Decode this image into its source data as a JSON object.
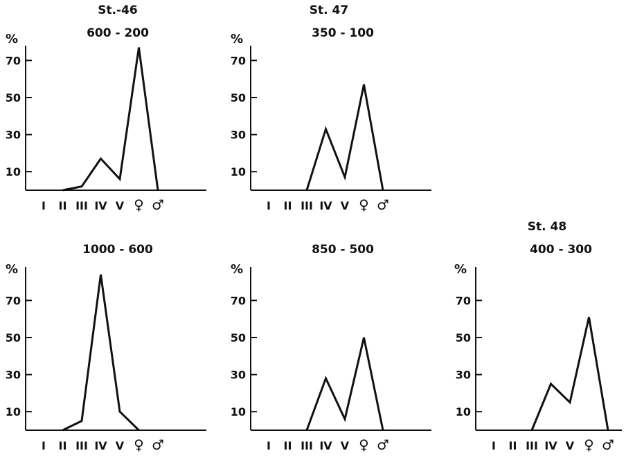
{
  "stations": [
    "St.-46",
    "St. 47",
    "St. 48"
  ],
  "chart_data": [
    {
      "type": "line",
      "station": "St.-46",
      "title": "600 - 200",
      "ylabel": "%",
      "categories": [
        "I",
        "II",
        "III",
        "IV",
        "V",
        "♀",
        "♂"
      ],
      "yticks": [
        10,
        30,
        50,
        70
      ],
      "ylim": [
        0,
        80
      ],
      "values": [
        null,
        0,
        2,
        17,
        6,
        77,
        0
      ]
    },
    {
      "type": "line",
      "station": "St. 47",
      "title": "350 - 100",
      "ylabel": "%",
      "categories": [
        "I",
        "II",
        "III",
        "IV",
        "V",
        "♀",
        "♂"
      ],
      "yticks": [
        10,
        30,
        50,
        70
      ],
      "ylim": [
        0,
        80
      ],
      "values": [
        null,
        null,
        0,
        33,
        7,
        57,
        0
      ]
    },
    {
      "type": "line",
      "title": "1000 - 600",
      "ylabel": "%",
      "categories": [
        "I",
        "II",
        "III",
        "IV",
        "V",
        "♀",
        "♂"
      ],
      "yticks": [
        10,
        30,
        50,
        70
      ],
      "ylim": [
        0,
        85
      ],
      "values": [
        null,
        0,
        5,
        84,
        10,
        0,
        null
      ]
    },
    {
      "type": "line",
      "title": "850 - 500",
      "ylabel": "%",
      "categories": [
        "I",
        "II",
        "III",
        "IV",
        "V",
        "♀",
        "♂"
      ],
      "yticks": [
        10,
        30,
        50,
        70
      ],
      "ylim": [
        0,
        85
      ],
      "values": [
        null,
        null,
        0,
        28,
        6,
        50,
        0
      ]
    },
    {
      "type": "line",
      "station": "St. 48",
      "title": "400 - 300",
      "ylabel": "%",
      "categories": [
        "I",
        "II",
        "III",
        "IV",
        "V",
        "♀",
        "♂"
      ],
      "yticks": [
        10,
        30,
        50,
        70
      ],
      "ylim": [
        0,
        85
      ],
      "values": [
        null,
        null,
        0,
        25,
        15,
        61,
        0
      ]
    }
  ]
}
